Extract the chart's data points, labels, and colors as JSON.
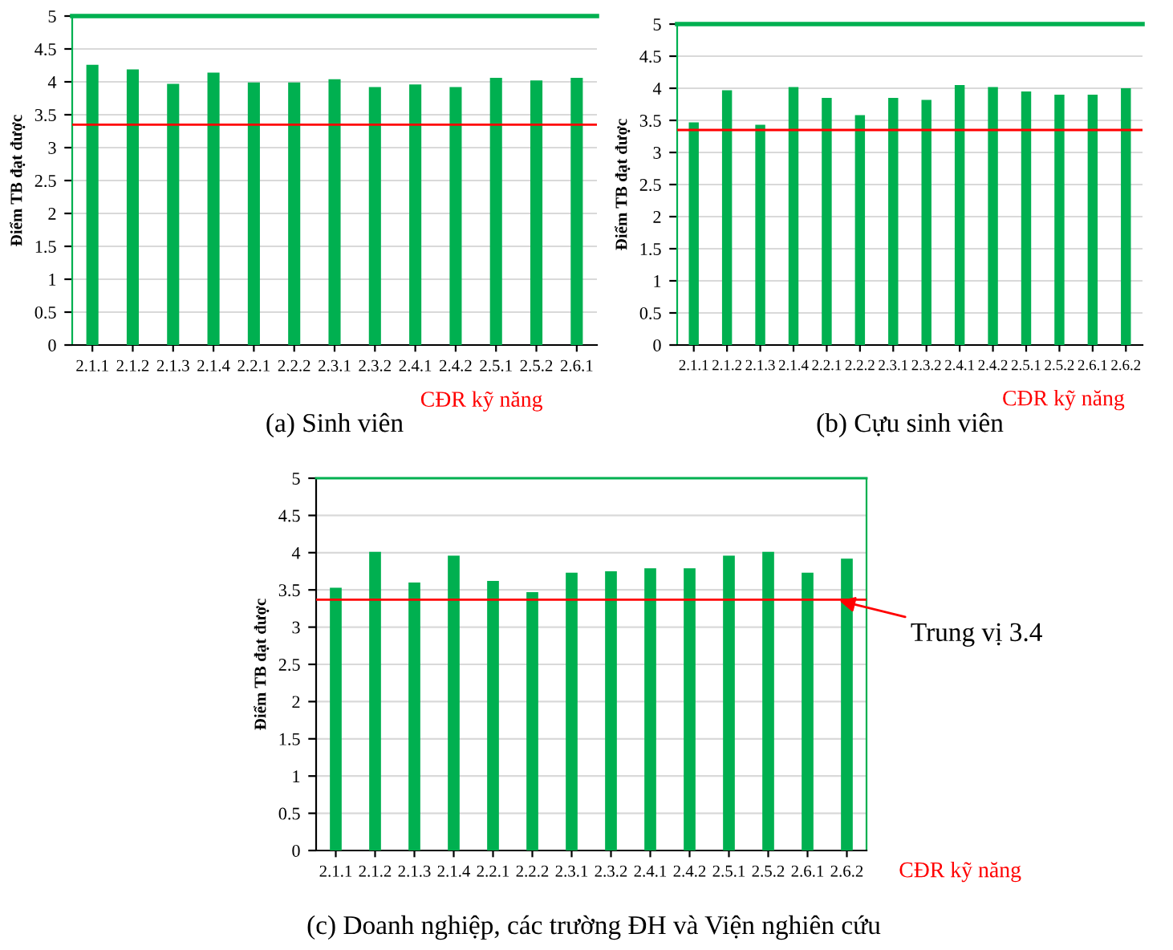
{
  "chart_data": [
    {
      "type": "bar",
      "title": "(a) Sinh viên",
      "xlabel": "CĐR kỹ năng",
      "ylabel": "Điểm TB đạt được",
      "categories": [
        "2.1.1",
        "2.1.2",
        "2.1.3",
        "2.1.4",
        "2.2.1",
        "2.2.2",
        "2.3.1",
        "2.3.2",
        "2.4.1",
        "2.4.2",
        "2.5.1",
        "2.5.2",
        "2.6.1"
      ],
      "values": [
        4.26,
        4.19,
        3.97,
        4.14,
        3.99,
        3.99,
        4.04,
        3.92,
        3.96,
        3.92,
        4.06,
        4.02,
        4.06
      ],
      "color": "#00b050",
      "ylim": [
        0,
        5
      ],
      "yticks": [
        0,
        0.5,
        1,
        1.5,
        2,
        2.5,
        3,
        3.5,
        4,
        4.5,
        5
      ],
      "grid": "y",
      "ref_lines": [
        {
          "axis": "y",
          "value": 3.35,
          "color": "#ff0000"
        }
      ]
    },
    {
      "type": "bar",
      "title": "(b) Cựu sinh viên",
      "xlabel": "CĐR kỹ năng",
      "ylabel": "Điểm TB đạt được",
      "categories": [
        "2.1.1",
        "2.1.2",
        "2.1.3",
        "2.1.4",
        "2.2.1",
        "2.2.2",
        "2.3.1",
        "2.3.2",
        "2.4.1",
        "2.4.2",
        "2.5.1",
        "2.5.2",
        "2.6.1",
        "2.6.2"
      ],
      "values": [
        3.47,
        3.97,
        3.43,
        4.02,
        3.85,
        3.58,
        3.85,
        3.82,
        4.05,
        4.02,
        3.95,
        3.9,
        3.9,
        4.0
      ],
      "color": "#00b050",
      "ylim": [
        0,
        5
      ],
      "yticks": [
        0,
        0.5,
        1,
        1.5,
        2,
        2.5,
        3,
        3.5,
        4,
        4.5,
        5
      ],
      "grid": "y",
      "ref_lines": [
        {
          "axis": "y",
          "value": 3.35,
          "color": "#ff0000"
        }
      ]
    },
    {
      "type": "bar",
      "title": "(c) Doanh nghiệp, các trường ĐH và Viện nghiên cứu",
      "xlabel": "CĐR kỹ năng",
      "ylabel": "Điểm TB đạt được",
      "categories": [
        "2.1.1",
        "2.1.2",
        "2.1.3",
        "2.1.4",
        "2.2.1",
        "2.2.2",
        "2.3.1",
        "2.3.2",
        "2.4.1",
        "2.4.2",
        "2.5.1",
        "2.5.2",
        "2.6.1",
        "2.6.2"
      ],
      "values": [
        3.53,
        4.01,
        3.6,
        3.96,
        3.62,
        3.47,
        3.73,
        3.75,
        3.79,
        3.79,
        3.96,
        4.01,
        3.73,
        3.92
      ],
      "color": "#00b050",
      "ylim": [
        0,
        5
      ],
      "yticks": [
        0,
        0.5,
        1,
        1.5,
        2,
        2.5,
        3,
        3.5,
        4,
        4.5,
        5
      ],
      "grid": "y",
      "ref_lines": [
        {
          "axis": "y",
          "value": 3.37,
          "color": "#ff0000",
          "label": "Trung vị 3.4"
        }
      ]
    }
  ]
}
